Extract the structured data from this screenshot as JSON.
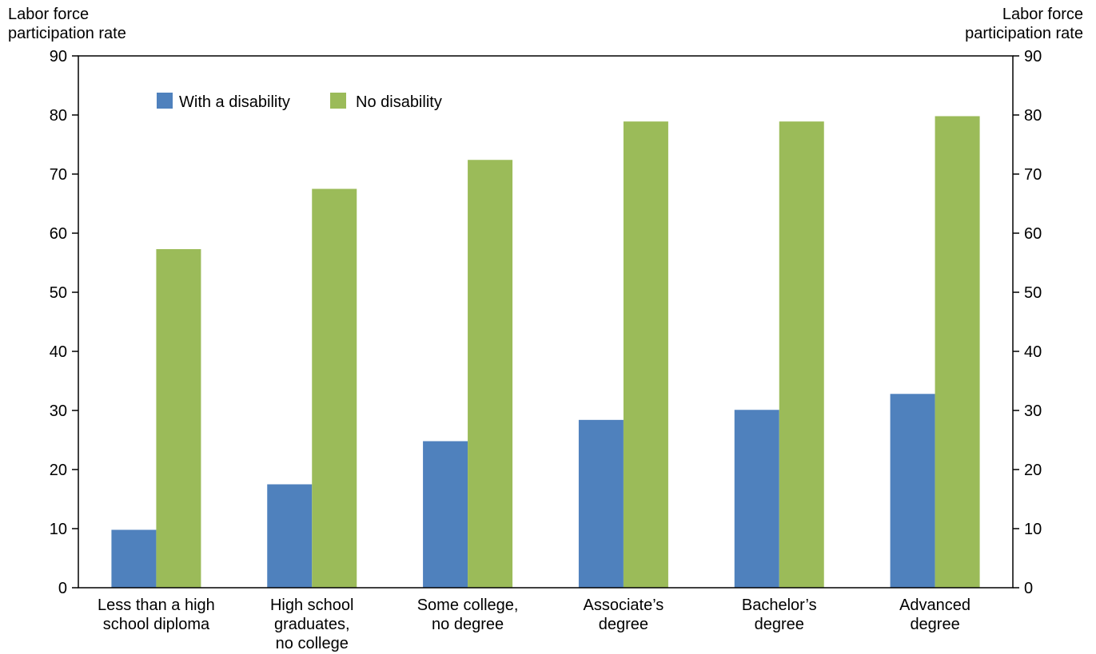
{
  "chart_data": {
    "type": "bar",
    "left_axis_label": [
      "Labor force",
      "participation rate"
    ],
    "right_axis_label": [
      "Labor force",
      "participation rate"
    ],
    "ylim": [
      0,
      90
    ],
    "yticks": [
      "0",
      "10",
      "20",
      "30",
      "40",
      "50",
      "60",
      "70",
      "80",
      "90"
    ],
    "categories": [
      [
        "Less than a high",
        "school diploma"
      ],
      [
        "High school",
        "graduates,",
        "no college"
      ],
      [
        "Some college,",
        "no degree"
      ],
      [
        "Associate’s",
        "degree"
      ],
      [
        "Bachelor’s",
        "degree"
      ],
      [
        "Advanced",
        "degree"
      ]
    ],
    "series": [
      {
        "name": "With a disability",
        "color": "#4f81bd",
        "values": [
          9.8,
          17.5,
          24.8,
          28.4,
          30.1,
          32.8
        ]
      },
      {
        "name": "No disability",
        "color": "#9bbb59",
        "values": [
          57.3,
          67.5,
          72.4,
          78.9,
          78.9,
          79.8
        ]
      }
    ],
    "legend_position": "top-left",
    "grid": false
  }
}
